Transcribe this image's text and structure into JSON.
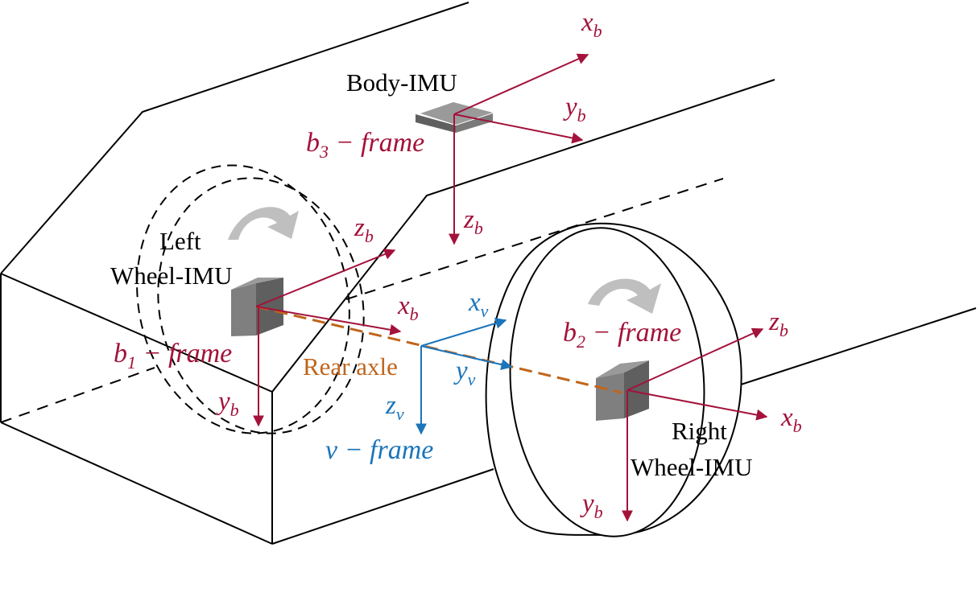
{
  "colors": {
    "imu_frame": "#a3123a",
    "vehicle_frame": "#1b75bb",
    "rear_axle": "#c0651b",
    "outline": "#000000",
    "imu_box": "#7f7f7f",
    "rotation_arrow": "#bfbfbf"
  },
  "labels": {
    "body_imu": "Body-IMU",
    "left_wheel_imu_line1": "Left",
    "left_wheel_imu_line2": "Wheel-IMU",
    "right_wheel_imu_line1": "Right",
    "right_wheel_imu_line2": "Wheel-IMU",
    "rear_axle": "Rear axle"
  },
  "frames": {
    "b1": {
      "base": "b",
      "sub": "1",
      "suffix": " − frame"
    },
    "b2": {
      "base": "b",
      "sub": "2",
      "suffix": " − frame"
    },
    "b3": {
      "base": "b",
      "sub": "3",
      "suffix": " − frame"
    },
    "v": {
      "text": "v − frame"
    }
  },
  "axes": {
    "body": {
      "x": "x",
      "y": "y",
      "z": "z",
      "sub": "b"
    },
    "left": {
      "x": "x",
      "y": "y",
      "z": "z",
      "sub": "b"
    },
    "right": {
      "x": "x",
      "y": "y",
      "z": "z",
      "sub": "b"
    },
    "vehicle": {
      "x": "x",
      "y": "y",
      "z": "z",
      "sub": "v"
    }
  },
  "icons": {
    "left_rotation": "curved-arrow-icon",
    "right_rotation": "curved-arrow-icon",
    "imu_box": "imu-box-icon"
  }
}
